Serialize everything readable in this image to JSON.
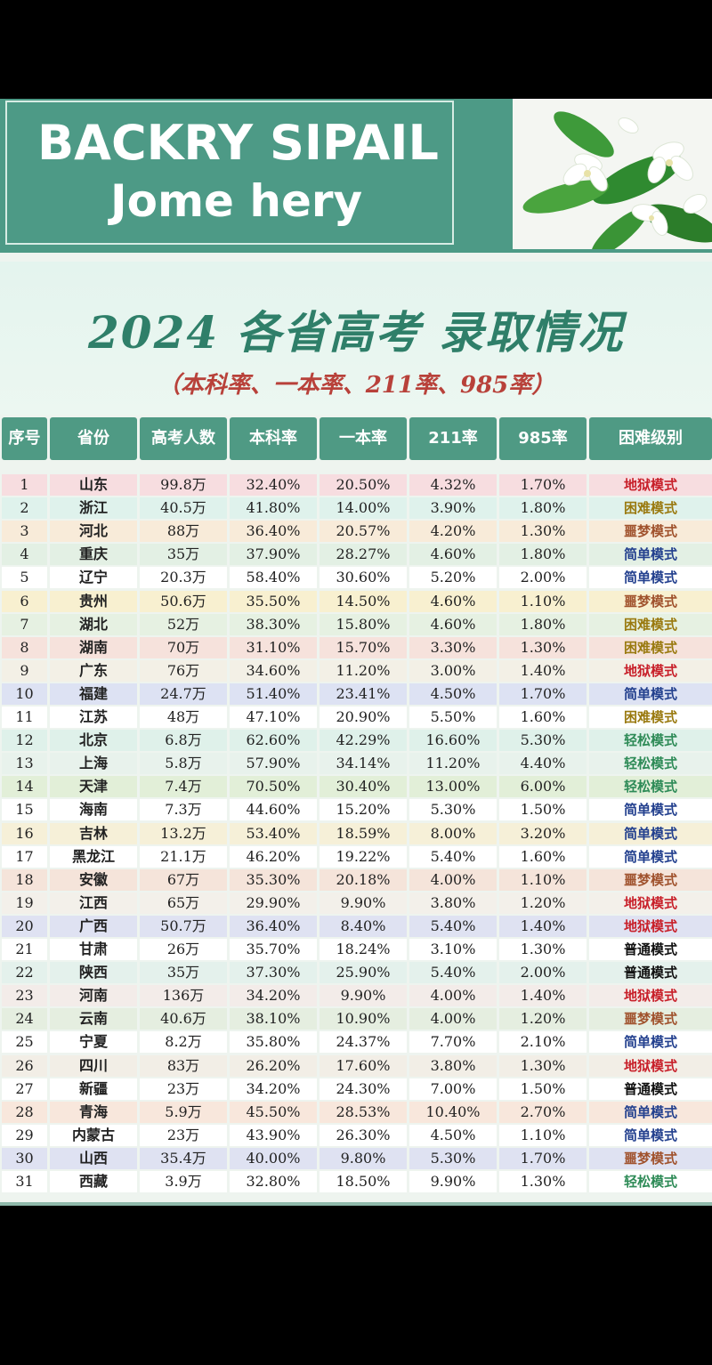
{
  "banner": {
    "line1": "BACKRY SIPAIL",
    "line2": "Jome hery"
  },
  "title": "2024 各省高考 录取情况",
  "subtitle": "（本科率、一本率、211率、985率）",
  "table": {
    "headers": [
      "序号",
      "省份",
      "高考人数",
      "本科率",
      "一本率",
      "211率",
      "985率",
      "困难级别"
    ],
    "rows": [
      [
        "1",
        "山东",
        "99.8万",
        "32.40%",
        "20.50%",
        "4.32%",
        "1.70%",
        "地狱模式"
      ],
      [
        "2",
        "浙江",
        "40.5万",
        "41.80%",
        "14.00%",
        "3.90%",
        "1.80%",
        "困难模式"
      ],
      [
        "3",
        "河北",
        "88万",
        "36.40%",
        "20.57%",
        "4.20%",
        "1.30%",
        "噩梦模式"
      ],
      [
        "4",
        "重庆",
        "35万",
        "37.90%",
        "28.27%",
        "4.60%",
        "1.80%",
        "简单模式"
      ],
      [
        "5",
        "辽宁",
        "20.3万",
        "58.40%",
        "30.60%",
        "5.20%",
        "2.00%",
        "简单模式"
      ],
      [
        "6",
        "贵州",
        "50.6万",
        "35.50%",
        "14.50%",
        "4.60%",
        "1.10%",
        "噩梦模式"
      ],
      [
        "7",
        "湖北",
        "52万",
        "38.30%",
        "15.80%",
        "4.60%",
        "1.80%",
        "困难模式"
      ],
      [
        "8",
        "湖南",
        "70万",
        "31.10%",
        "15.70%",
        "3.30%",
        "1.30%",
        "困难模式"
      ],
      [
        "9",
        "广东",
        "76万",
        "34.60%",
        "11.20%",
        "3.00%",
        "1.40%",
        "地狱模式"
      ],
      [
        "10",
        "福建",
        "24.7万",
        "51.40%",
        "23.41%",
        "4.50%",
        "1.70%",
        "简单模式"
      ],
      [
        "11",
        "江苏",
        "48万",
        "47.10%",
        "20.90%",
        "5.50%",
        "1.60%",
        "困难模式"
      ],
      [
        "12",
        "北京",
        "6.8万",
        "62.60%",
        "42.29%",
        "16.60%",
        "5.30%",
        "轻松模式"
      ],
      [
        "13",
        "上海",
        "5.8万",
        "57.90%",
        "34.14%",
        "11.20%",
        "4.40%",
        "轻松模式"
      ],
      [
        "14",
        "天津",
        "7.4万",
        "70.50%",
        "30.40%",
        "13.00%",
        "6.00%",
        "轻松模式"
      ],
      [
        "15",
        "海南",
        "7.3万",
        "44.60%",
        "15.20%",
        "5.30%",
        "1.50%",
        "简单模式"
      ],
      [
        "16",
        "吉林",
        "13.2万",
        "53.40%",
        "18.59%",
        "8.00%",
        "3.20%",
        "简单模式"
      ],
      [
        "17",
        "黑龙江",
        "21.1万",
        "46.20%",
        "19.22%",
        "5.40%",
        "1.60%",
        "简单模式"
      ],
      [
        "18",
        "安徽",
        "67万",
        "35.30%",
        "20.18%",
        "4.00%",
        "1.10%",
        "噩梦模式"
      ],
      [
        "19",
        "江西",
        "65万",
        "29.90%",
        "9.90%",
        "3.80%",
        "1.20%",
        "地狱模式"
      ],
      [
        "20",
        "广西",
        "50.7万",
        "36.40%",
        "8.40%",
        "5.40%",
        "1.40%",
        "地狱模式"
      ],
      [
        "21",
        "甘肃",
        "26万",
        "35.70%",
        "18.24%",
        "3.10%",
        "1.30%",
        "普通模式"
      ],
      [
        "22",
        "陕西",
        "35万",
        "37.30%",
        "25.90%",
        "5.40%",
        "2.00%",
        "普通模式"
      ],
      [
        "23",
        "河南",
        "136万",
        "34.20%",
        "9.90%",
        "4.00%",
        "1.40%",
        "地狱模式"
      ],
      [
        "24",
        "云南",
        "40.6万",
        "38.10%",
        "10.90%",
        "4.00%",
        "1.20%",
        "噩梦模式"
      ],
      [
        "25",
        "宁夏",
        "8.2万",
        "35.80%",
        "24.37%",
        "7.70%",
        "2.10%",
        "简单模式"
      ],
      [
        "26",
        "四川",
        "83万",
        "26.20%",
        "17.60%",
        "3.80%",
        "1.30%",
        "地狱模式"
      ],
      [
        "27",
        "新疆",
        "23万",
        "34.20%",
        "24.30%",
        "7.00%",
        "1.50%",
        "普通模式"
      ],
      [
        "28",
        "青海",
        "5.9万",
        "45.50%",
        "28.53%",
        "10.40%",
        "2.70%",
        "简单模式"
      ],
      [
        "29",
        "内蒙古",
        "23万",
        "43.90%",
        "26.30%",
        "4.50%",
        "1.10%",
        "简单模式"
      ],
      [
        "30",
        "山西",
        "35.4万",
        "40.00%",
        "9.80%",
        "5.30%",
        "1.70%",
        "噩梦模式"
      ],
      [
        "31",
        "西藏",
        "3.9万",
        "32.80%",
        "18.50%",
        "9.90%",
        "1.30%",
        "轻松模式"
      ]
    ]
  },
  "level_colors": {
    "地狱模式": "#c8202a",
    "困难模式": "#9a7a10",
    "噩梦模式": "#a0522d",
    "简单模式": "#23408e",
    "轻松模式": "#2e8b57",
    "普通模式": "#111111"
  },
  "row_tints": [
    "#f7dde0",
    "#dff2ec",
    "#f8ebd9",
    "#e3f0e4",
    "#ffffff",
    "#f8f0d0",
    "#e6f1e2",
    "#f6e2dc",
    "#f3f0e6",
    "#dde2f3",
    "#ffffff",
    "#dff1ea",
    "#e8f2ec",
    "#e2efd8",
    "#ffffff",
    "#f6f0d8",
    "#ffffff",
    "#f5e4da",
    "#f3f0ea",
    "#dfe2f2",
    "#ffffff",
    "#e4f1ec",
    "#f3ece9",
    "#e5eee0",
    "#ffffff",
    "#f2eee6",
    "#ffffff",
    "#f8e7dc",
    "#ffffff",
    "#dfe2f2",
    "#ffffff"
  ]
}
